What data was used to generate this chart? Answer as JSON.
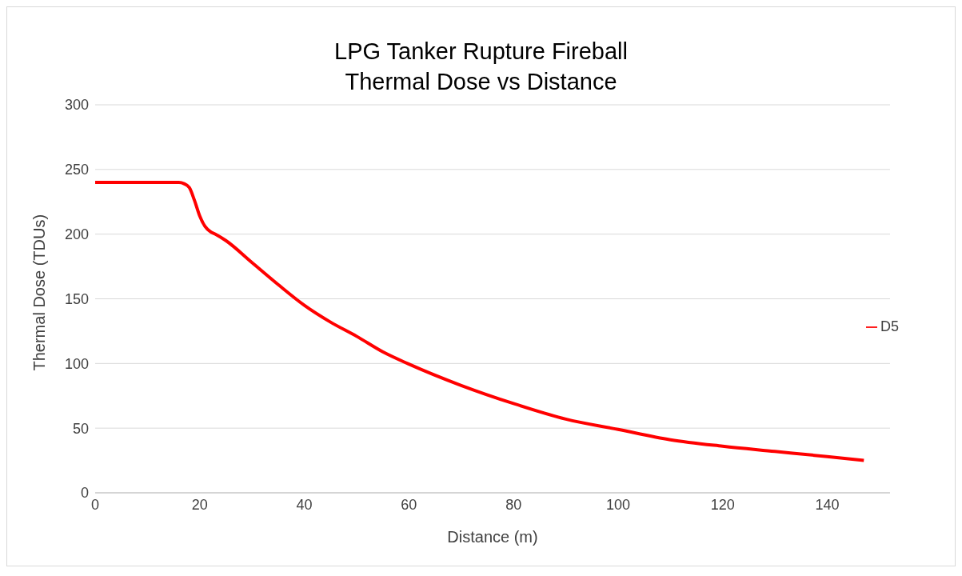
{
  "chart_data": {
    "type": "line",
    "title": "LPG Tanker Rupture Fireball",
    "subtitle": "Thermal Dose vs Distance",
    "xlabel": "Distance (m)",
    "ylabel": "Thermal Dose (TDUs)",
    "x": [
      0,
      5,
      10,
      14,
      16,
      17,
      18,
      19,
      20,
      21,
      22,
      23,
      25,
      30,
      35,
      40,
      45,
      50,
      55,
      60,
      70,
      80,
      90,
      100,
      110,
      120,
      130,
      140,
      147
    ],
    "series": [
      {
        "name": "D5",
        "color": "#ff0000",
        "values": [
          240,
          240,
          240,
          240,
          240,
          239,
          236,
          226,
          214,
          206,
          202,
          200,
          195,
          178,
          161,
          145,
          132,
          121,
          109,
          99.5,
          83,
          69,
          57,
          49,
          41,
          36,
          32,
          28,
          25
        ]
      }
    ],
    "xlim": [
      0,
      152
    ],
    "xticks": [
      0,
      20,
      40,
      60,
      80,
      100,
      120,
      140
    ],
    "ylim": [
      0,
      300
    ],
    "yticks": [
      0,
      50,
      100,
      150,
      200,
      250,
      300
    ],
    "grid": "y",
    "legend": "right",
    "marker": "none",
    "line_style": "solid"
  }
}
